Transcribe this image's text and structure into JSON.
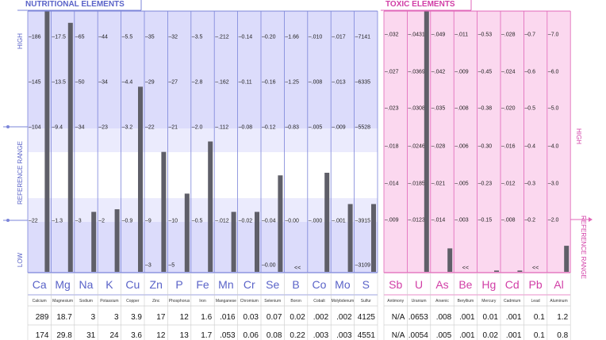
{
  "chart_data": [
    {
      "type": "bar",
      "title": "NUTRITIONAL ELEMENTS",
      "axis_labels": {
        "low": "LOW",
        "reference": "REFERENCE RANGE",
        "high": "HIGH"
      },
      "colors": {
        "frame": "#7b84d9",
        "bg": "#dcdcfb",
        "band": "#ffffff",
        "header_text": "#5a63c8",
        "bar": "#5f5f68"
      },
      "elements": [
        {
          "symbol": "Ca",
          "name": "Calcium",
          "ticks": [
            "186",
            "145",
            "104",
            "22",
            ""
          ],
          "result": "289",
          "reference": "174",
          "level": 1.0
        },
        {
          "symbol": "Mg",
          "name": "Magnesium",
          "ticks": [
            "17.5",
            "13.5",
            "9.4",
            "1.3",
            ""
          ],
          "result": "18.7",
          "reference": "29.8",
          "level": 0.955
        },
        {
          "symbol": "Na",
          "name": "Sodium",
          "ticks": [
            "65",
            "50",
            "34",
            "3",
            ""
          ],
          "result": "3",
          "reference": "31",
          "level": 0.23
        },
        {
          "symbol": "K",
          "name": "Potassium",
          "ticks": [
            "44",
            "34",
            "23",
            "2",
            ""
          ],
          "result": "3",
          "reference": "24",
          "level": 0.24
        },
        {
          "symbol": "Cu",
          "name": "Copper",
          "ticks": [
            "5.5",
            "4.4",
            "3.2",
            "0.9",
            ""
          ],
          "result": "3.9",
          "reference": "3.6",
          "level": 0.71
        },
        {
          "symbol": "Zn",
          "name": "Zinc",
          "ticks": [
            "35",
            "29",
            "22",
            "9",
            "3"
          ],
          "result": "17",
          "reference": "12",
          "level": 0.46
        },
        {
          "symbol": "P",
          "name": "Phosphorus",
          "ticks": [
            "32",
            "27",
            "21",
            "10",
            "5"
          ],
          "result": "12",
          "reference": "13",
          "level": 0.3
        },
        {
          "symbol": "Fe",
          "name": "Iron",
          "ticks": [
            "3.5",
            "2.8",
            "2.0",
            "0.5",
            ""
          ],
          "result": "1.6",
          "reference": "1.7",
          "level": 0.5
        },
        {
          "symbol": "Mn",
          "name": "Manganese",
          "ticks": [
            ".212",
            ".162",
            ".112",
            ".012",
            ""
          ],
          "result": ".016",
          "reference": ".053",
          "level": 0.23
        },
        {
          "symbol": "Cr",
          "name": "Chromium",
          "ticks": [
            "0.14",
            "0.11",
            "0.08",
            "0.02",
            ""
          ],
          "result": "0.03",
          "reference": "0.06",
          "level": 0.23
        },
        {
          "symbol": "Se",
          "name": "Selenium",
          "ticks": [
            "0.20",
            "0.16",
            "0.12",
            "0.04",
            "0.00"
          ],
          "result": "0.07",
          "reference": "0.08",
          "level": 0.37
        },
        {
          "symbol": "B",
          "name": "Boron",
          "ticks": [
            "1.66",
            "1.25",
            "0.83",
            "0.00",
            ""
          ],
          "result": "0.02",
          "reference": "0.22",
          "level": 0.0,
          "below_marker": "<<"
        },
        {
          "symbol": "Co",
          "name": "Cobalt",
          "ticks": [
            ".010",
            ".008",
            ".005",
            ".000",
            ""
          ],
          "result": ".002",
          "reference": ".003",
          "level": 0.38
        },
        {
          "symbol": "Mo",
          "name": "Molybdenum",
          "ticks": [
            ".017",
            ".013",
            ".009",
            ".001",
            ""
          ],
          "result": ".002",
          "reference": ".003",
          "level": 0.26
        },
        {
          "symbol": "S",
          "name": "Sulfur",
          "ticks": [
            "7141",
            "6335",
            "5528",
            "3915",
            "3109"
          ],
          "result": "4125",
          "reference": "4551",
          "level": 0.26
        }
      ]
    },
    {
      "type": "bar",
      "title": "TOXIC ELEMENTS",
      "axis_labels": {
        "high": "HIGH",
        "reference": "REFERENCE RANGE"
      },
      "colors": {
        "frame": "#e066b8",
        "bg": "#fbd8ef",
        "header_text": "#d13ea6",
        "bar": "#5f5f68"
      },
      "elements": [
        {
          "symbol": "Sb",
          "name": "Antimony",
          "ticks": [
            ".032",
            ".027",
            ".023",
            ".018",
            ".014",
            ".009"
          ],
          "result": "N/A",
          "reference": "N/A",
          "level": 0.0
        },
        {
          "symbol": "U",
          "name": "Uranium",
          "ticks": [
            ".0431",
            ".0369",
            ".0308",
            ".0246",
            ".0185",
            ".0123"
          ],
          "result": ".0653",
          "reference": ".0054",
          "level": 1.0
        },
        {
          "symbol": "As",
          "name": "Arsenic",
          "ticks": [
            ".049",
            ".042",
            ".035",
            ".028",
            ".021",
            ".014"
          ],
          "result": ".008",
          "reference": ".005",
          "level": 0.09
        },
        {
          "symbol": "Be",
          "name": "Beryllium",
          "ticks": [
            ".011",
            ".009",
            ".008",
            ".006",
            ".005",
            ".003"
          ],
          "result": ".001",
          "reference": ".001",
          "level": 0.0,
          "below_marker": "<<"
        },
        {
          "symbol": "Hg",
          "name": "Mercury",
          "ticks": [
            "0.53",
            "0.45",
            "0.38",
            "0.30",
            "0.23",
            "0.15"
          ],
          "result": "0.01",
          "reference": "0.02",
          "level": 0.005
        },
        {
          "symbol": "Cd",
          "name": "Cadmium",
          "ticks": [
            ".028",
            ".024",
            ".020",
            ".016",
            ".012",
            ".008"
          ],
          "result": ".001",
          "reference": ".001",
          "level": 0.005
        },
        {
          "symbol": "Pb",
          "name": "Lead",
          "ticks": [
            "0.7",
            "0.6",
            "0.5",
            "0.4",
            "0.3",
            "0.2"
          ],
          "result": "0.1",
          "reference": "0.1",
          "level": 0.0,
          "below_marker": "<<"
        },
        {
          "symbol": "Al",
          "name": "Aluminum",
          "ticks": [
            "7.0",
            "6.0",
            "5.0",
            "4.0",
            "3.0",
            "2.0"
          ],
          "result": "1.2",
          "reference": "0.8",
          "level": 0.1
        }
      ]
    }
  ]
}
